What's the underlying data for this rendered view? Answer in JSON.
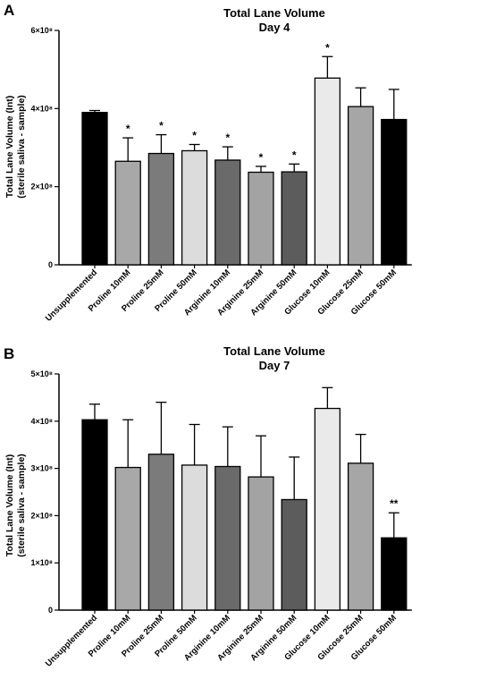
{
  "chart_data": [
    {
      "panel": "A",
      "type": "bar",
      "title": "Total Lane Volume",
      "subtitle": "Day 4",
      "ylabel_lines": [
        "Total Lane Volume (Int)",
        "(sterile saliva - sample)"
      ],
      "ylim": [
        0,
        600000000
      ],
      "yticks": [
        0,
        200000000,
        400000000,
        600000000
      ],
      "ytick_labels": [
        "0",
        "2×10⁸",
        "4×10⁸",
        "6×10⁸"
      ],
      "categories": [
        "Unsupplemented",
        "Proline 10mM",
        "Proline 25mM",
        "Proline 50mM",
        "Arginine 10mM",
        "Arginine 25mM",
        "Arginine 50mM",
        "Glucose 10mM",
        "Glucose 25mM",
        "Glucose 50mM"
      ],
      "values": [
        390000000,
        265000000,
        285000000,
        292000000,
        268000000,
        237000000,
        238000000,
        478000000,
        405000000,
        372000000
      ],
      "errors": [
        5000000,
        60000000,
        48000000,
        16000000,
        34000000,
        15000000,
        20000000,
        55000000,
        48000000,
        77000000
      ],
      "significance": [
        "",
        "*",
        "*",
        "*",
        "*",
        "*",
        "*",
        "*",
        "",
        ""
      ],
      "colors": [
        "#000000",
        "#a8a8a8",
        "#7b7b7b",
        "#dcdcdc",
        "#6a6a6a",
        "#a3a3a3",
        "#5c5c5c",
        "#eaeaea",
        "#a6a6a6",
        "#000000"
      ]
    },
    {
      "panel": "B",
      "type": "bar",
      "title": "Total Lane Volume",
      "subtitle": "Day 7",
      "ylabel_lines": [
        "Total Lane Volume (Int)",
        "(sterile saliva - sample)"
      ],
      "ylim": [
        0,
        500000000
      ],
      "yticks": [
        0,
        100000000,
        200000000,
        300000000,
        400000000,
        500000000
      ],
      "ytick_labels": [
        "0",
        "1×10⁸",
        "2×10⁸",
        "3×10⁸",
        "4×10⁸",
        "5×10⁸"
      ],
      "categories": [
        "Unsupplemented",
        "Proline 10mM",
        "Proline 25mM",
        "Proline 50mM",
        "Arginine 10mM",
        "Arginine 25mM",
        "Arginine 50mM",
        "Glucose 10mM",
        "Glucose 25mM",
        "Glucose 50mM"
      ],
      "values": [
        403000000,
        302000000,
        330000000,
        307000000,
        304000000,
        282000000,
        234000000,
        427000000,
        311000000,
        153000000
      ],
      "errors": [
        33000000,
        101000000,
        110000000,
        86000000,
        84000000,
        87000000,
        90000000,
        44000000,
        61000000,
        53000000
      ],
      "significance": [
        "",
        "",
        "",
        "",
        "",
        "",
        "",
        "",
        "",
        "**"
      ],
      "colors": [
        "#000000",
        "#a8a8a8",
        "#7b7b7b",
        "#dcdcdc",
        "#6a6a6a",
        "#a3a3a3",
        "#5c5c5c",
        "#eaeaea",
        "#a6a6a6",
        "#000000"
      ]
    }
  ]
}
